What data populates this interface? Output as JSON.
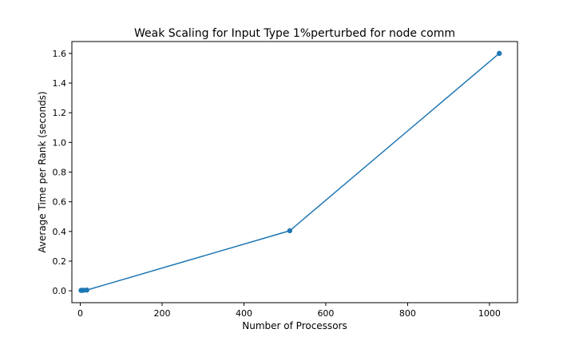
{
  "chart_data": {
    "type": "line",
    "title": "Weak Scaling for Input Type 1%perturbed for node comm",
    "xlabel": "Number of Processors",
    "ylabel": "Average Time per Rank (seconds)",
    "xlim": [
      -20.5,
      1068.5
    ],
    "ylim": [
      -0.08,
      1.68
    ],
    "xticks": [
      0,
      200,
      400,
      600,
      800,
      1000
    ],
    "yticks": [
      0.0,
      0.2,
      0.4,
      0.6,
      0.8,
      1.0,
      1.2,
      1.4,
      1.6
    ],
    "xtick_labels": [
      "0",
      "200",
      "400",
      "600",
      "800",
      "1000"
    ],
    "ytick_labels": [
      "0.0",
      "0.2",
      "0.4",
      "0.6",
      "0.8",
      "1.0",
      "1.2",
      "1.4",
      "1.6"
    ],
    "grid": false,
    "color": "#1f77b4",
    "series": [
      {
        "x": [
          2,
          4,
          8,
          16,
          512,
          1024
        ],
        "y": [
          0.003,
          0.003,
          0.004,
          0.005,
          0.405,
          1.6
        ]
      }
    ]
  }
}
